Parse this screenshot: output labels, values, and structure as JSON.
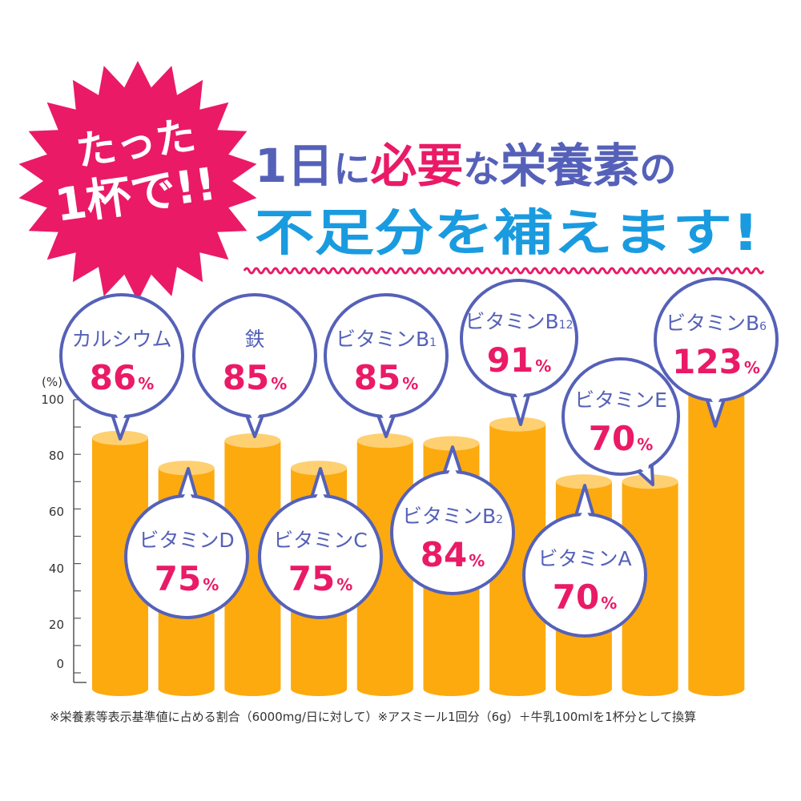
{
  "burst": {
    "line1": "たった",
    "line2": "1杯で!!"
  },
  "headline": {
    "line1": [
      {
        "text": "1日",
        "style": "blue"
      },
      {
        "text": "に",
        "style": "blue-small"
      },
      {
        "text": "必要",
        "style": "pink"
      },
      {
        "text": "な",
        "style": "blue-small"
      },
      {
        "text": "栄養素",
        "style": "blue"
      },
      {
        "text": "の",
        "style": "blue-small"
      }
    ],
    "line2": "不足分を補えます!"
  },
  "colors": {
    "bar": "#fdaa0f",
    "bar_top": "#fed071",
    "pink": "#ea1a67",
    "bubble_border": "#5561b8",
    "headline_blue": "#5561b8",
    "headline_cyan": "#1a9be0",
    "wave": "#ea1a67"
  },
  "chart_data": {
    "type": "bar",
    "ylabel": "(%)",
    "ylim": [
      0,
      100
    ],
    "yticks": [
      "100",
      "80",
      "60",
      "40",
      "20",
      "0"
    ],
    "series": [
      {
        "name": "カルシウム",
        "sub": "",
        "value": 86,
        "label_value": "86",
        "label_unit": "%",
        "bubble": "above"
      },
      {
        "name": "ビタミンD",
        "sub": "",
        "value": 75,
        "label_value": "75",
        "label_unit": "%",
        "bubble": "below"
      },
      {
        "name": "鉄",
        "sub": "",
        "value": 85,
        "label_value": "85",
        "label_unit": "%",
        "bubble": "above"
      },
      {
        "name": "ビタミンC",
        "sub": "",
        "value": 75,
        "label_value": "75",
        "label_unit": "%",
        "bubble": "below"
      },
      {
        "name": "ビタミンB",
        "sub": "1",
        "value": 85,
        "label_value": "85",
        "label_unit": "%",
        "bubble": "above"
      },
      {
        "name": "ビタミンB",
        "sub": "2",
        "value": 84,
        "label_value": "84",
        "label_unit": "%",
        "bubble": "below"
      },
      {
        "name": "ビタミンB",
        "sub": "12",
        "value": 91,
        "label_value": "91",
        "label_unit": "%",
        "bubble": "above"
      },
      {
        "name": "ビタミンA",
        "sub": "",
        "value": 70,
        "label_value": "70",
        "label_unit": "%",
        "bubble": "below"
      },
      {
        "name": "ビタミンE",
        "sub": "",
        "value": 70,
        "label_value": "70",
        "label_unit": "%",
        "bubble": "above"
      },
      {
        "name": "ビタミンB",
        "sub": "6",
        "value": 123,
        "label_value": "123",
        "label_unit": "%",
        "bubble": "above"
      }
    ]
  },
  "footnote": "※栄養素等表示基準値に占める割合（6000mg/日に対して）※アスミール1回分（6g）＋牛乳100mlを1杯分として換算"
}
